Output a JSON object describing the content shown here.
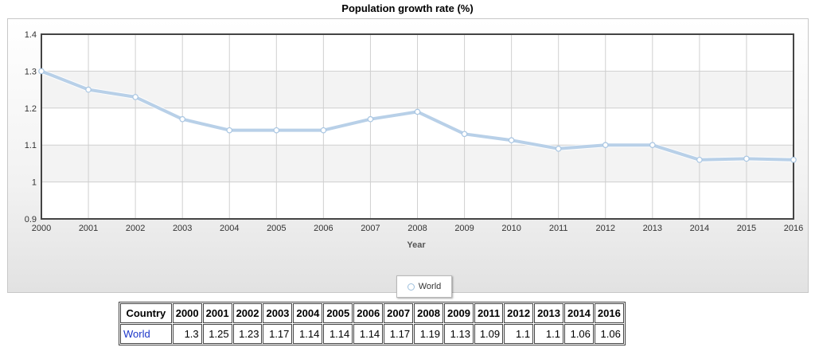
{
  "chart_data": {
    "type": "line",
    "title": "Population growth rate (%)",
    "xlabel": "Year",
    "ylabel": "",
    "x": [
      "2000",
      "2001",
      "2002",
      "2003",
      "2004",
      "2005",
      "2006",
      "2007",
      "2008",
      "2009",
      "2010",
      "2011",
      "2012",
      "2013",
      "2014",
      "2015",
      "2016"
    ],
    "series": [
      {
        "name": "World",
        "values": [
          1.3,
          1.25,
          1.23,
          1.17,
          1.14,
          1.14,
          1.14,
          1.17,
          1.19,
          1.13,
          1.113,
          1.09,
          1.1,
          1.1,
          1.06,
          1.063,
          1.06
        ]
      }
    ],
    "ylim": [
      0.9,
      1.4
    ],
    "yticks": [
      "0.9",
      "1",
      "1.1",
      "1.2",
      "1.3",
      "1.4"
    ],
    "grid": true,
    "legend": "bottom-center",
    "line_color": "#b8d0e8"
  },
  "table": {
    "header_label": "Country",
    "years": [
      "2000",
      "2001",
      "2002",
      "2003",
      "2004",
      "2005",
      "2006",
      "2007",
      "2008",
      "2009",
      "2011",
      "2012",
      "2013",
      "2014",
      "2016"
    ],
    "rows": [
      {
        "country": "World",
        "values": [
          "1.3",
          "1.25",
          "1.23",
          "1.17",
          "1.14",
          "1.14",
          "1.14",
          "1.17",
          "1.19",
          "1.13",
          "1.09",
          "1.1",
          "1.1",
          "1.06",
          "1.06"
        ]
      }
    ]
  }
}
